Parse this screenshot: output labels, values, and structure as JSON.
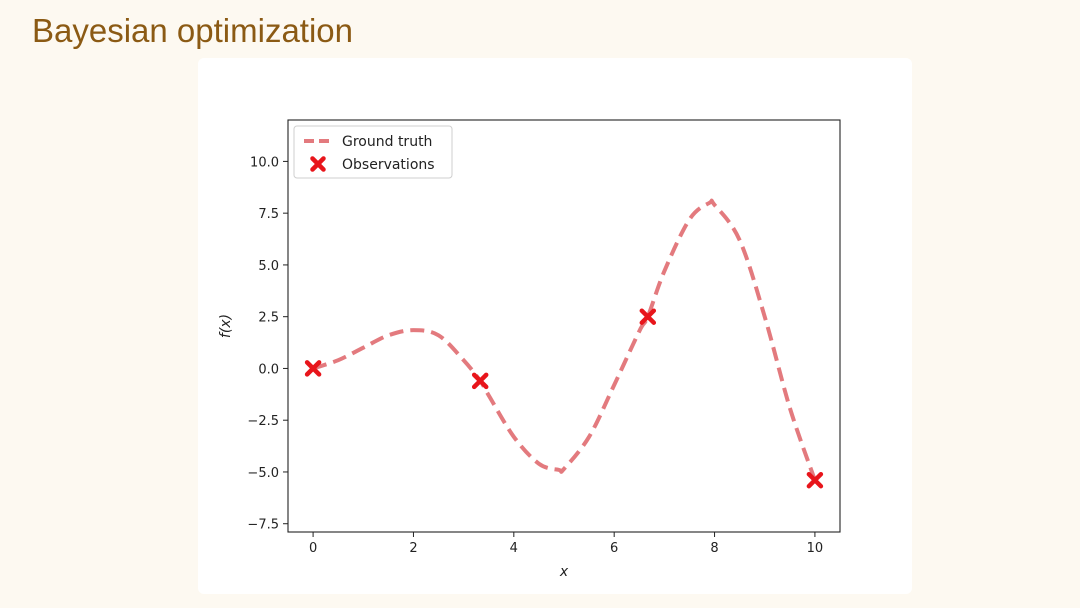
{
  "slide": {
    "title": "Bayesian optimization"
  },
  "colors": {
    "title": "#8b5a14",
    "ground_truth": "#e37a7e",
    "observations": "#e8151b"
  },
  "chart_data": {
    "type": "line",
    "title": "",
    "xlabel": "x",
    "ylabel": "f(x)",
    "xlim": [
      -0.5,
      10.5
    ],
    "ylim": [
      -7.9,
      12.0
    ],
    "xticks": [
      0,
      2,
      4,
      6,
      8,
      10
    ],
    "xtick_labels": [
      "0",
      "2",
      "4",
      "6",
      "8",
      "10"
    ],
    "yticks": [
      -7.5,
      -5.0,
      -2.5,
      0.0,
      2.5,
      5.0,
      7.5,
      10.0
    ],
    "ytick_labels": [
      "−7.5",
      "−5.0",
      "−2.5",
      "0.0",
      "2.5",
      "5.0",
      "7.5",
      "10.0"
    ],
    "grid": false,
    "legend_position": "top-left",
    "series": [
      {
        "name": "Ground truth",
        "style": "dashed-line",
        "x": [
          0,
          0.5,
          1.0,
          1.5,
          2.0,
          2.5,
          3.0,
          3.33,
          3.5,
          4.0,
          4.5,
          4.9,
          5.0,
          5.5,
          6.0,
          6.5,
          6.67,
          7.0,
          7.5,
          7.9,
          8.0,
          8.5,
          9.0,
          9.5,
          10.0
        ],
        "y": [
          0.0,
          0.4,
          1.0,
          1.6,
          1.85,
          1.6,
          0.4,
          -0.6,
          -1.3,
          -3.3,
          -4.6,
          -4.9,
          -4.85,
          -3.3,
          -0.8,
          1.8,
          2.5,
          4.7,
          7.2,
          8.0,
          7.9,
          6.2,
          2.5,
          -1.9,
          -5.4
        ]
      },
      {
        "name": "Observations",
        "style": "x-markers",
        "x": [
          0,
          3.33,
          6.67,
          10.0
        ],
        "y": [
          0.0,
          -0.6,
          2.5,
          -5.4
        ]
      }
    ]
  }
}
